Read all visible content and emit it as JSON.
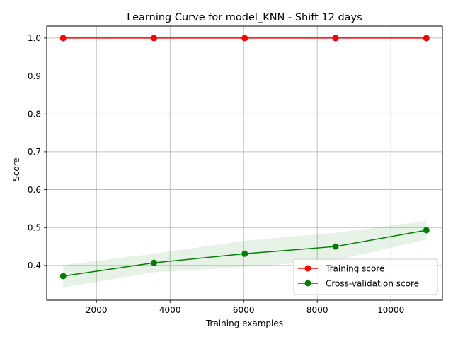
{
  "chart_data": {
    "type": "line",
    "title": "Learning Curve for model_KNN - Shift 12 days",
    "xlabel": "Training examples",
    "ylabel": "Score",
    "xlim": [
      650,
      11400
    ],
    "ylim": [
      0.3085,
      1.0315
    ],
    "xticks": [
      2000,
      4000,
      6000,
      8000,
      10000
    ],
    "yticks": [
      0.4,
      0.5,
      0.6,
      0.7,
      0.8,
      0.9,
      1.0
    ],
    "xtick_labels": [
      "2000",
      "4000",
      "6000",
      "8000",
      "10000"
    ],
    "ytick_labels": [
      "0.4",
      "0.5",
      "0.6",
      "0.7",
      "0.8",
      "0.9",
      "1.0"
    ],
    "grid": true,
    "legend_position": "lower-right",
    "x": [
      1096,
      3563,
      6030,
      8497,
      10964
    ],
    "series": [
      {
        "name": "Training score",
        "color": "#ff0000",
        "fill_color": "#ff0000",
        "values": [
          1.0,
          1.0,
          1.0,
          1.0,
          1.0
        ],
        "band_low": [
          1.0,
          1.0,
          1.0,
          1.0,
          1.0
        ],
        "band_high": [
          1.0,
          1.0,
          1.0,
          1.0,
          1.0
        ]
      },
      {
        "name": "Cross-validation score",
        "color": "#008000",
        "fill_color": "#008000",
        "values": [
          0.372,
          0.407,
          0.431,
          0.45,
          0.493
        ],
        "band_low": [
          0.342,
          0.382,
          0.396,
          0.414,
          0.468
        ],
        "band_high": [
          0.401,
          0.431,
          0.465,
          0.486,
          0.518
        ]
      }
    ]
  }
}
